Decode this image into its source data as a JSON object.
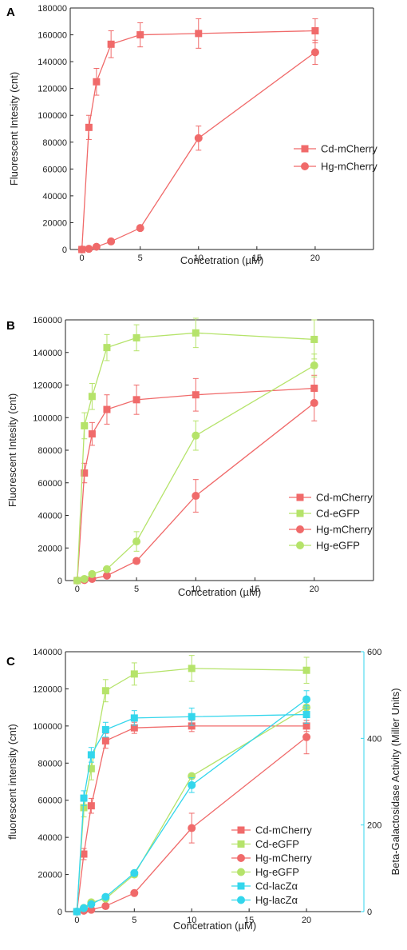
{
  "chart_data": [
    {
      "panel": "A",
      "type": "line",
      "xlabel": "Concetration (µM)",
      "ylabel": "Fluorescent Intesity (cnt)",
      "xlim": [
        -1,
        25
      ],
      "ylim": [
        0,
        180000
      ],
      "xticks": [
        0,
        5,
        10,
        15,
        20
      ],
      "yticks": [
        0,
        20000,
        40000,
        60000,
        80000,
        100000,
        120000,
        140000,
        160000,
        180000
      ],
      "grid": false,
      "legend_position": "center-right",
      "series": [
        {
          "name": "Cd-mCherry",
          "marker": "square",
          "color": "#f06a6a",
          "x": [
            0,
            0.6,
            1.25,
            2.5,
            5,
            10,
            20
          ],
          "y": [
            0,
            91000,
            125000,
            153000,
            160000,
            161000,
            163000
          ],
          "err": [
            0,
            9000,
            10000,
            10000,
            9000,
            11000,
            9000
          ]
        },
        {
          "name": "Hg-mCherry",
          "marker": "circle",
          "color": "#f06a6a",
          "x": [
            0,
            0.6,
            1.25,
            2.5,
            5,
            10,
            20
          ],
          "y": [
            0,
            500,
            2000,
            6000,
            16000,
            83000,
            147000
          ],
          "err": [
            0,
            0,
            0,
            0,
            0,
            9000,
            9000
          ]
        }
      ]
    },
    {
      "panel": "B",
      "type": "line",
      "xlabel": "Concetration (µM)",
      "ylabel": "Fluorescent Intesity (cnt)",
      "xlim": [
        -1,
        25
      ],
      "ylim": [
        0,
        160000
      ],
      "xticks": [
        0,
        5,
        10,
        15,
        20
      ],
      "yticks": [
        0,
        20000,
        40000,
        60000,
        80000,
        100000,
        120000,
        140000,
        160000
      ],
      "grid": false,
      "legend_position": "center-right",
      "series": [
        {
          "name": "Cd-mCherry",
          "marker": "square",
          "color": "#f06a6a",
          "x": [
            0,
            0.6,
            1.25,
            2.5,
            5,
            10,
            20
          ],
          "y": [
            0,
            66000,
            90000,
            105000,
            111000,
            114000,
            118000
          ],
          "err": [
            0,
            6000,
            7000,
            9000,
            9000,
            10000,
            8000
          ]
        },
        {
          "name": "Cd-eGFP",
          "marker": "square",
          "color": "#b5e36a",
          "x": [
            0,
            0.6,
            1.25,
            2.5,
            5,
            10,
            20
          ],
          "y": [
            0,
            95000,
            113000,
            143000,
            149000,
            152000,
            148000
          ],
          "err": [
            0,
            8000,
            8000,
            8000,
            8000,
            9000,
            12000
          ]
        },
        {
          "name": "Hg-mCherry",
          "marker": "circle",
          "color": "#f06a6a",
          "x": [
            0,
            0.6,
            1.25,
            2.5,
            5,
            10,
            20
          ],
          "y": [
            0,
            300,
            1000,
            3000,
            12000,
            52000,
            109000
          ],
          "err": [
            0,
            0,
            0,
            0,
            0,
            10000,
            11000
          ]
        },
        {
          "name": "Hg-eGFP",
          "marker": "circle",
          "color": "#b5e36a",
          "x": [
            0,
            0.6,
            1.25,
            2.5,
            5,
            10,
            20
          ],
          "y": [
            0,
            1000,
            4000,
            7000,
            24000,
            89000,
            132000
          ],
          "err": [
            0,
            0,
            0,
            0,
            6000,
            9000,
            7000
          ]
        }
      ]
    },
    {
      "panel": "C",
      "type": "line",
      "xlabel": "Concetration (µM)",
      "ylabel": "fluorescent intensity (cnt)",
      "y2label": "Beta-Galactosidase Activity (Miller Units)",
      "xlim": [
        -1,
        25
      ],
      "ylim": [
        0,
        140000
      ],
      "y2lim": [
        0,
        600
      ],
      "xticks": [
        0,
        5,
        10,
        15,
        20
      ],
      "yticks": [
        0,
        20000,
        40000,
        60000,
        80000,
        100000,
        120000,
        140000
      ],
      "y2ticks": [
        0,
        200,
        400,
        600
      ],
      "grid": false,
      "legend_position": "bottom-right",
      "series": [
        {
          "name": "Cd-mCherry",
          "marker": "square",
          "color": "#f06a6a",
          "axis": "left",
          "x": [
            0,
            0.6,
            1.25,
            2.5,
            5,
            10,
            20
          ],
          "y": [
            0,
            31000,
            57000,
            92000,
            99000,
            100000,
            100000
          ],
          "err": [
            0,
            3000,
            4000,
            4000,
            3000,
            3000,
            3000
          ]
        },
        {
          "name": "Cd-eGFP",
          "marker": "square",
          "color": "#b5e36a",
          "axis": "left",
          "x": [
            0,
            0.6,
            1.25,
            2.5,
            5,
            10,
            20
          ],
          "y": [
            0,
            56000,
            77000,
            119000,
            128000,
            131000,
            130000
          ],
          "err": [
            0,
            5000,
            6000,
            6000,
            6000,
            7000,
            7000
          ]
        },
        {
          "name": "Hg-mCherry",
          "marker": "circle",
          "color": "#f06a6a",
          "axis": "left",
          "x": [
            0,
            0.6,
            1.25,
            2.5,
            5,
            10,
            20
          ],
          "y": [
            0,
            500,
            1000,
            3000,
            10000,
            45000,
            94000
          ],
          "err": [
            0,
            0,
            0,
            0,
            0,
            8000,
            9000
          ]
        },
        {
          "name": "Hg-eGFP",
          "marker": "circle",
          "color": "#b5e36a",
          "axis": "left",
          "x": [
            0,
            0.6,
            1.25,
            2.5,
            5,
            10,
            20
          ],
          "y": [
            0,
            2000,
            5000,
            7000,
            20000,
            73000,
            110000
          ],
          "err": [
            0,
            0,
            0,
            0,
            0,
            0,
            0
          ]
        },
        {
          "name": "Cd-lacZα",
          "marker": "square",
          "color": "#33d6ec",
          "axis": "right",
          "x": [
            0,
            0.6,
            1.25,
            2.5,
            5,
            10,
            20
          ],
          "y": [
            0,
            262,
            362,
            420,
            447,
            450,
            455
          ],
          "err": [
            0,
            17,
            17,
            17,
            17,
            20,
            20
          ]
        },
        {
          "name": "Hg-lacZα",
          "marker": "circle",
          "color": "#33d6ec",
          "axis": "right",
          "x": [
            0,
            0.6,
            1.25,
            2.5,
            5,
            10,
            20
          ],
          "y": [
            0,
            8,
            17,
            34,
            89,
            292,
            490
          ],
          "err": [
            0,
            0,
            0,
            0,
            0,
            17,
            20
          ]
        }
      ]
    }
  ],
  "colors": {
    "axis": "#222222",
    "y2_axis": "#33d6ec"
  }
}
